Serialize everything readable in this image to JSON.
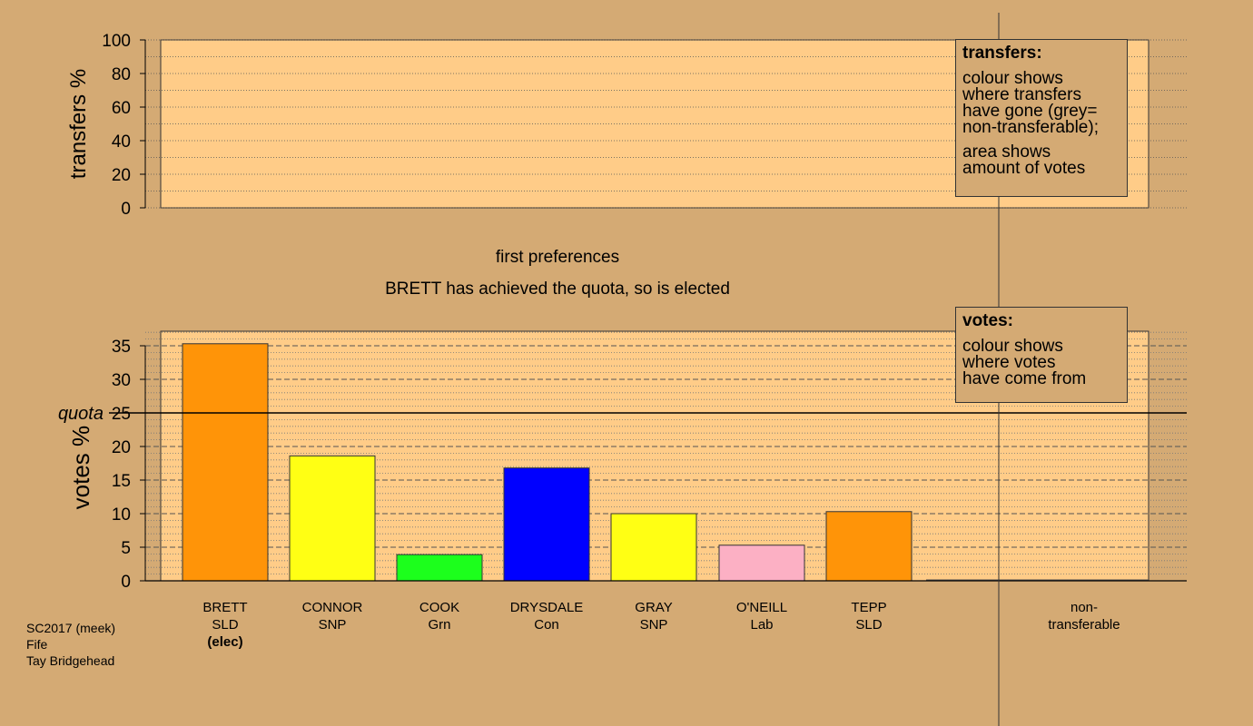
{
  "chart_data": [
    {
      "type": "bar",
      "panel": "transfers",
      "ylabel": "transfers %",
      "ylim": [
        0,
        100
      ],
      "yticks": [
        0,
        20,
        40,
        60,
        80,
        100
      ],
      "grid": "dotted",
      "categories": [
        "BRETT",
        "CONNOR",
        "COOK",
        "DRYSDALE",
        "GRAY",
        "O'NEILL",
        "TEPP",
        "non-transferable"
      ],
      "values": [
        0,
        0,
        0,
        0,
        0,
        0,
        0,
        0
      ]
    },
    {
      "type": "bar",
      "panel": "votes",
      "ylabel": "votes %",
      "ylim": [
        0,
        37
      ],
      "yticks": [
        0,
        5,
        10,
        15,
        20,
        25,
        30,
        35
      ],
      "grid": "dotted",
      "quota": 25,
      "quota_label": "quota",
      "categories": [
        {
          "name": "BRETT",
          "party": "SLD",
          "status": "(elec)"
        },
        {
          "name": "CONNOR",
          "party": "SNP",
          "status": ""
        },
        {
          "name": "COOK",
          "party": "Grn",
          "status": ""
        },
        {
          "name": "DRYSDALE",
          "party": "Con",
          "status": ""
        },
        {
          "name": "GRAY",
          "party": "SNP",
          "status": ""
        },
        {
          "name": "O'NEILL",
          "party": "Lab",
          "status": ""
        },
        {
          "name": "TEPP",
          "party": "SLD",
          "status": ""
        }
      ],
      "values": [
        35.3,
        18.6,
        3.9,
        16.8,
        10.0,
        5.3,
        10.3
      ],
      "colors": [
        "#ff9408",
        "#ffff14",
        "#1cff1c",
        "#0000ff",
        "#ffff14",
        "#fcb0c4",
        "#ff9408"
      ],
      "nontransferable_label": [
        "non-",
        "transferable"
      ]
    }
  ],
  "captions": {
    "stage": "first preferences",
    "event": "BRETT has achieved the quota, so is elected"
  },
  "legend_transfers": {
    "title": "transfers:",
    "lines_a": [
      "colour shows",
      "where transfers",
      "have gone (grey=",
      "non-transferable);"
    ],
    "lines_b": [
      "area shows",
      "amount of votes"
    ]
  },
  "legend_votes": {
    "title": "votes:",
    "lines": [
      "colour shows",
      "where votes",
      "have come from"
    ]
  },
  "footer": {
    "line1": "SC2017 (meek)",
    "line2": "Fife",
    "line3": "Tay Bridgehead"
  },
  "colors": {
    "background": "#d4aa74",
    "plot_area": "#ffcc88"
  }
}
